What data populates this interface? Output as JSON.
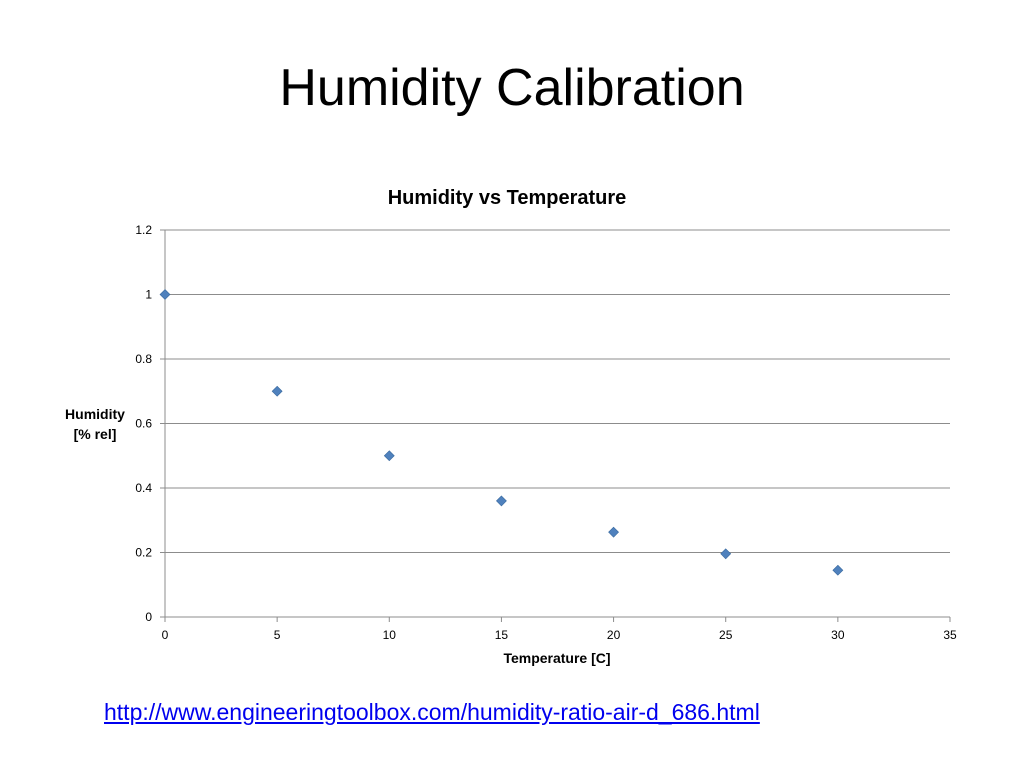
{
  "slide": {
    "title": "Humidity Calibration",
    "link": "http://www.engineeringtoolbox.com/humidity-ratio-air-d_686.html"
  },
  "chart_data": {
    "type": "scatter",
    "title": "Humidity vs Temperature",
    "xlabel": "Temperature [C]",
    "ylabel_lines": [
      "Humidity",
      "[% rel]"
    ],
    "xlim": [
      0,
      35
    ],
    "ylim": [
      0,
      1.2
    ],
    "xticks": [
      0,
      5,
      10,
      15,
      20,
      25,
      30,
      35
    ],
    "yticks": [
      0,
      0.2,
      0.4,
      0.6,
      0.8,
      1,
      1.2
    ],
    "grid": "horizontal",
    "legend": "none",
    "marker": "diamond",
    "marker_color": "#4f81bd",
    "x": [
      0,
      5,
      10,
      15,
      20,
      25,
      30
    ],
    "y": [
      1.0,
      0.7,
      0.5,
      0.36,
      0.263,
      0.196,
      0.145
    ]
  }
}
